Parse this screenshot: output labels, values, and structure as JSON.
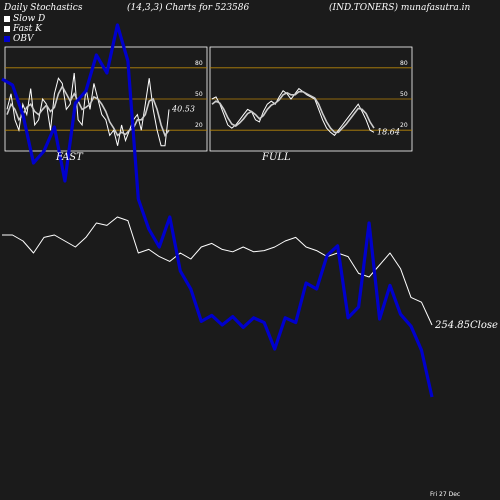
{
  "header": {
    "title": "Daily Stochastics",
    "params": "(14,3,3) Charts for 523586",
    "symbol": "(IND.TONERS) munafasutra.in"
  },
  "legend": [
    {
      "label": "Slow  D",
      "color": "#ffffff"
    },
    {
      "label": "Fast K",
      "color": "#ffffff"
    },
    {
      "label": "OBV",
      "color": "#0000cc"
    }
  ],
  "colors": {
    "background": "#1b1b1b",
    "grid": "#b8860b",
    "price": "#ffffff",
    "obv": "#0000cc"
  },
  "chart_data": [
    {
      "type": "line",
      "name": "FAST",
      "ylim": [
        0,
        100
      ],
      "yticks": [
        20,
        50,
        80
      ],
      "last_value_label": "40.53",
      "series": [
        {
          "name": "Fast K",
          "values": [
            40,
            55,
            30,
            20,
            45,
            35,
            60,
            25,
            30,
            50,
            45,
            20,
            55,
            70,
            65,
            40,
            45,
            75,
            30,
            25,
            60,
            40,
            65,
            50,
            35,
            30,
            15,
            20,
            5,
            25,
            10,
            20,
            30,
            35,
            20,
            45,
            70,
            40,
            20,
            5,
            5,
            40
          ]
        },
        {
          "name": "Slow D",
          "values": [
            35,
            45,
            40,
            30,
            35,
            42,
            45,
            38,
            35,
            40,
            44,
            38,
            42,
            55,
            62,
            55,
            48,
            55,
            48,
            40,
            42,
            45,
            52,
            50,
            45,
            38,
            28,
            22,
            15,
            18,
            16,
            20,
            22,
            30,
            30,
            35,
            48,
            50,
            40,
            25,
            15,
            20
          ]
        }
      ]
    },
    {
      "type": "line",
      "name": "FULL",
      "ylim": [
        0,
        100
      ],
      "yticks": [
        20,
        50,
        80
      ],
      "last_value_label": "18.64",
      "series": [
        {
          "name": "Fast K",
          "values": [
            50,
            52,
            45,
            35,
            25,
            22,
            25,
            30,
            35,
            40,
            38,
            30,
            28,
            38,
            45,
            48,
            45,
            52,
            58,
            55,
            50,
            55,
            60,
            57,
            54,
            52,
            50,
            40,
            30,
            22,
            18,
            15,
            20,
            25,
            30,
            35,
            40,
            45,
            38,
            30,
            20,
            18
          ]
        },
        {
          "name": "Slow D",
          "values": [
            45,
            48,
            46,
            40,
            32,
            26,
            24,
            27,
            31,
            36,
            38,
            35,
            31,
            34,
            40,
            44,
            46,
            49,
            54,
            56,
            54,
            54,
            57,
            57,
            55,
            53,
            51,
            45,
            36,
            28,
            22,
            18,
            18,
            22,
            26,
            31,
            36,
            41,
            40,
            36,
            28,
            22
          ]
        }
      ]
    },
    {
      "type": "line",
      "name": "price_obv",
      "last_value_label": "254.85",
      "last_value_suffix": "Close",
      "series": [
        {
          "name": "Price",
          "values": [
            50,
            50,
            45,
            35,
            48,
            50,
            45,
            40,
            48,
            60,
            58,
            65,
            62,
            35,
            38,
            32,
            28,
            35,
            30,
            40,
            43,
            38,
            36,
            40,
            36,
            37,
            40,
            45,
            48,
            40,
            37,
            32,
            35,
            32,
            18,
            15,
            25,
            35,
            22,
            -2,
            -6,
            -25
          ]
        },
        {
          "name": "OBV",
          "values": [
            180,
            175,
            150,
            110,
            120,
            140,
            95,
            160,
            170,
            200,
            185,
            225,
            195,
            80,
            55,
            40,
            65,
            20,
            5,
            -22,
            -17,
            -25,
            -18,
            -27,
            -19,
            -23,
            -45,
            -19,
            -23,
            10,
            5,
            33,
            41,
            -19,
            -10,
            60,
            -20,
            8,
            -16,
            -26,
            -46,
            -85
          ]
        }
      ]
    }
  ],
  "panel_labels": {
    "fast": "FAST",
    "full": "FULL"
  },
  "footer": {
    "date": "Fri 27 Dec"
  }
}
